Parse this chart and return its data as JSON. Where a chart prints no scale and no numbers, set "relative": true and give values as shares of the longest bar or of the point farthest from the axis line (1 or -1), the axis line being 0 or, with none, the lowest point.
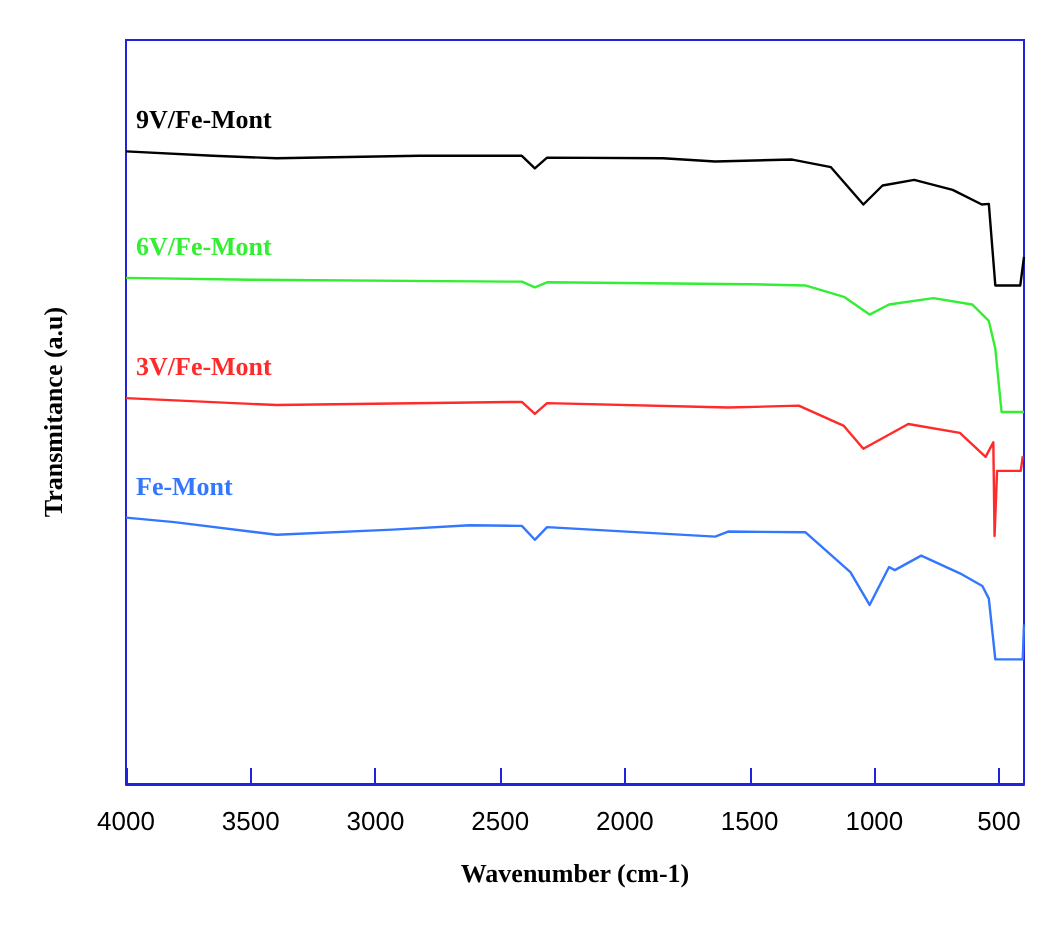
{
  "chart_data": {
    "type": "line",
    "relative": true,
    "xlabel": "Wavenumber (cm-1)",
    "ylabel": "Transmitance (a.u)",
    "xlim": [
      4000,
      400
    ],
    "xticks": [
      4000,
      3500,
      3000,
      2500,
      2000,
      1500,
      1000,
      500
    ],
    "legend": false,
    "grid": false,
    "series": [
      {
        "name": "9V/Fe-Mont",
        "color": "#000000",
        "x": [
          4000,
          3652,
          3396,
          2823,
          2413,
          2361,
          2312,
          1847,
          1638,
          1329,
          1174,
          1044,
          967,
          840,
          686,
          569,
          541,
          515,
          415,
          400
        ],
        "values": [
          1.0,
          0.993,
          0.989,
          0.993,
          0.993,
          0.973,
          0.99,
          0.989,
          0.984,
          0.987,
          0.975,
          0.916,
          0.946,
          0.955,
          0.939,
          0.916,
          0.917,
          0.788,
          0.788,
          0.833
        ]
      },
      {
        "name": "6V/Fe-Mont",
        "color": "#33ee33",
        "x": [
          4000,
          3500,
          2413,
          2361,
          2312,
          1500,
          1277,
          1122,
          1019,
          941,
          763,
          608,
          541,
          515,
          490,
          400
        ],
        "values": [
          0.8,
          0.797,
          0.794,
          0.785,
          0.793,
          0.79,
          0.788,
          0.77,
          0.742,
          0.758,
          0.768,
          0.758,
          0.732,
          0.688,
          0.588,
          0.588
        ]
      },
      {
        "name": "3V/Fe-Mont",
        "color": "#ff2a2a",
        "x": [
          4000,
          3396,
          2413,
          2361,
          2312,
          1586,
          1303,
          1122,
          1044,
          864,
          657,
          554,
          523,
          518,
          508,
          413,
          405
        ],
        "values": [
          0.61,
          0.599,
          0.604,
          0.585,
          0.602,
          0.595,
          0.598,
          0.566,
          0.53,
          0.569,
          0.555,
          0.517,
          0.54,
          0.392,
          0.495,
          0.495,
          0.518
        ]
      },
      {
        "name": "Fe-Mont",
        "color": "#3377ff",
        "x": [
          4000,
          3806,
          3396,
          2931,
          2622,
          2413,
          2361,
          2312,
          1638,
          1586,
          1277,
          1096,
          1019,
          941,
          918,
          812,
          657,
          567,
          541,
          515,
          405,
          400
        ],
        "values": [
          0.421,
          0.414,
          0.394,
          0.402,
          0.409,
          0.408,
          0.386,
          0.406,
          0.391,
          0.399,
          0.398,
          0.335,
          0.283,
          0.343,
          0.338,
          0.361,
          0.333,
          0.313,
          0.293,
          0.197,
          0.197,
          0.252
        ]
      }
    ]
  }
}
